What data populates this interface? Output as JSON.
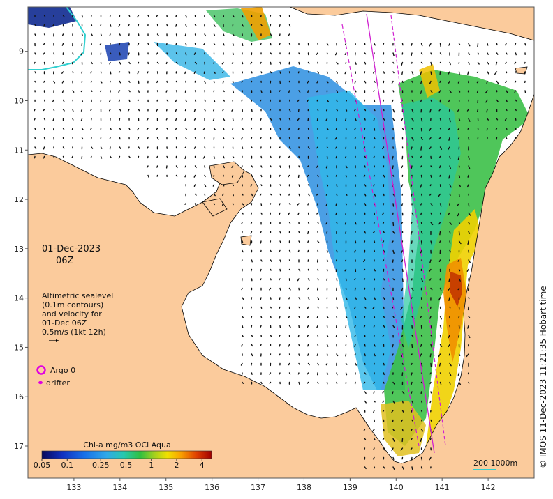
{
  "map": {
    "lon_ticks": [
      "133",
      "134",
      "135",
      "136",
      "137",
      "138",
      "139",
      "140",
      "141",
      "142"
    ],
    "lat_ticks": [
      "9",
      "10",
      "11",
      "12",
      "13",
      "14",
      "15",
      "16",
      "17"
    ],
    "lat_tick_values": [
      -9,
      -10,
      -11,
      -12,
      -13,
      -14,
      -15,
      -16,
      -17
    ],
    "lon_tick_values": [
      133,
      134,
      135,
      136,
      137,
      138,
      139,
      140,
      141,
      142
    ],
    "lon_range": [
      132.0,
      143.0
    ],
    "lat_range": [
      -8.1,
      -17.65
    ]
  },
  "annotation": {
    "date": "01-Dec-2023",
    "time": "06Z",
    "legend_lines": [
      "Altimetric sealevel",
      "(0.1m contours)",
      "and velocity for",
      "01-Dec 06Z",
      "0.5m/s (1kt 12h)"
    ],
    "argo_label": "Argo 0",
    "drifter_label": "drifter"
  },
  "colorbar": {
    "title": "Chl-a mg/m3 OCi Aqua",
    "tick_labels": [
      "0.05",
      "0.1",
      "0.25",
      "0.5",
      "1",
      "2",
      "4"
    ],
    "tick_values": [
      0.05,
      0.1,
      0.25,
      0.5,
      1,
      2,
      4
    ]
  },
  "scale_bar": {
    "label": "200  1000m"
  },
  "credit": "© IMOS 11-Dec-2023 11:21:35 Hobart time",
  "colors": {
    "land": "#fbcb9c",
    "sea": "#ffffff",
    "track": "#d020d0",
    "argo": "#e000e0",
    "isobath": "#30d0d0"
  }
}
